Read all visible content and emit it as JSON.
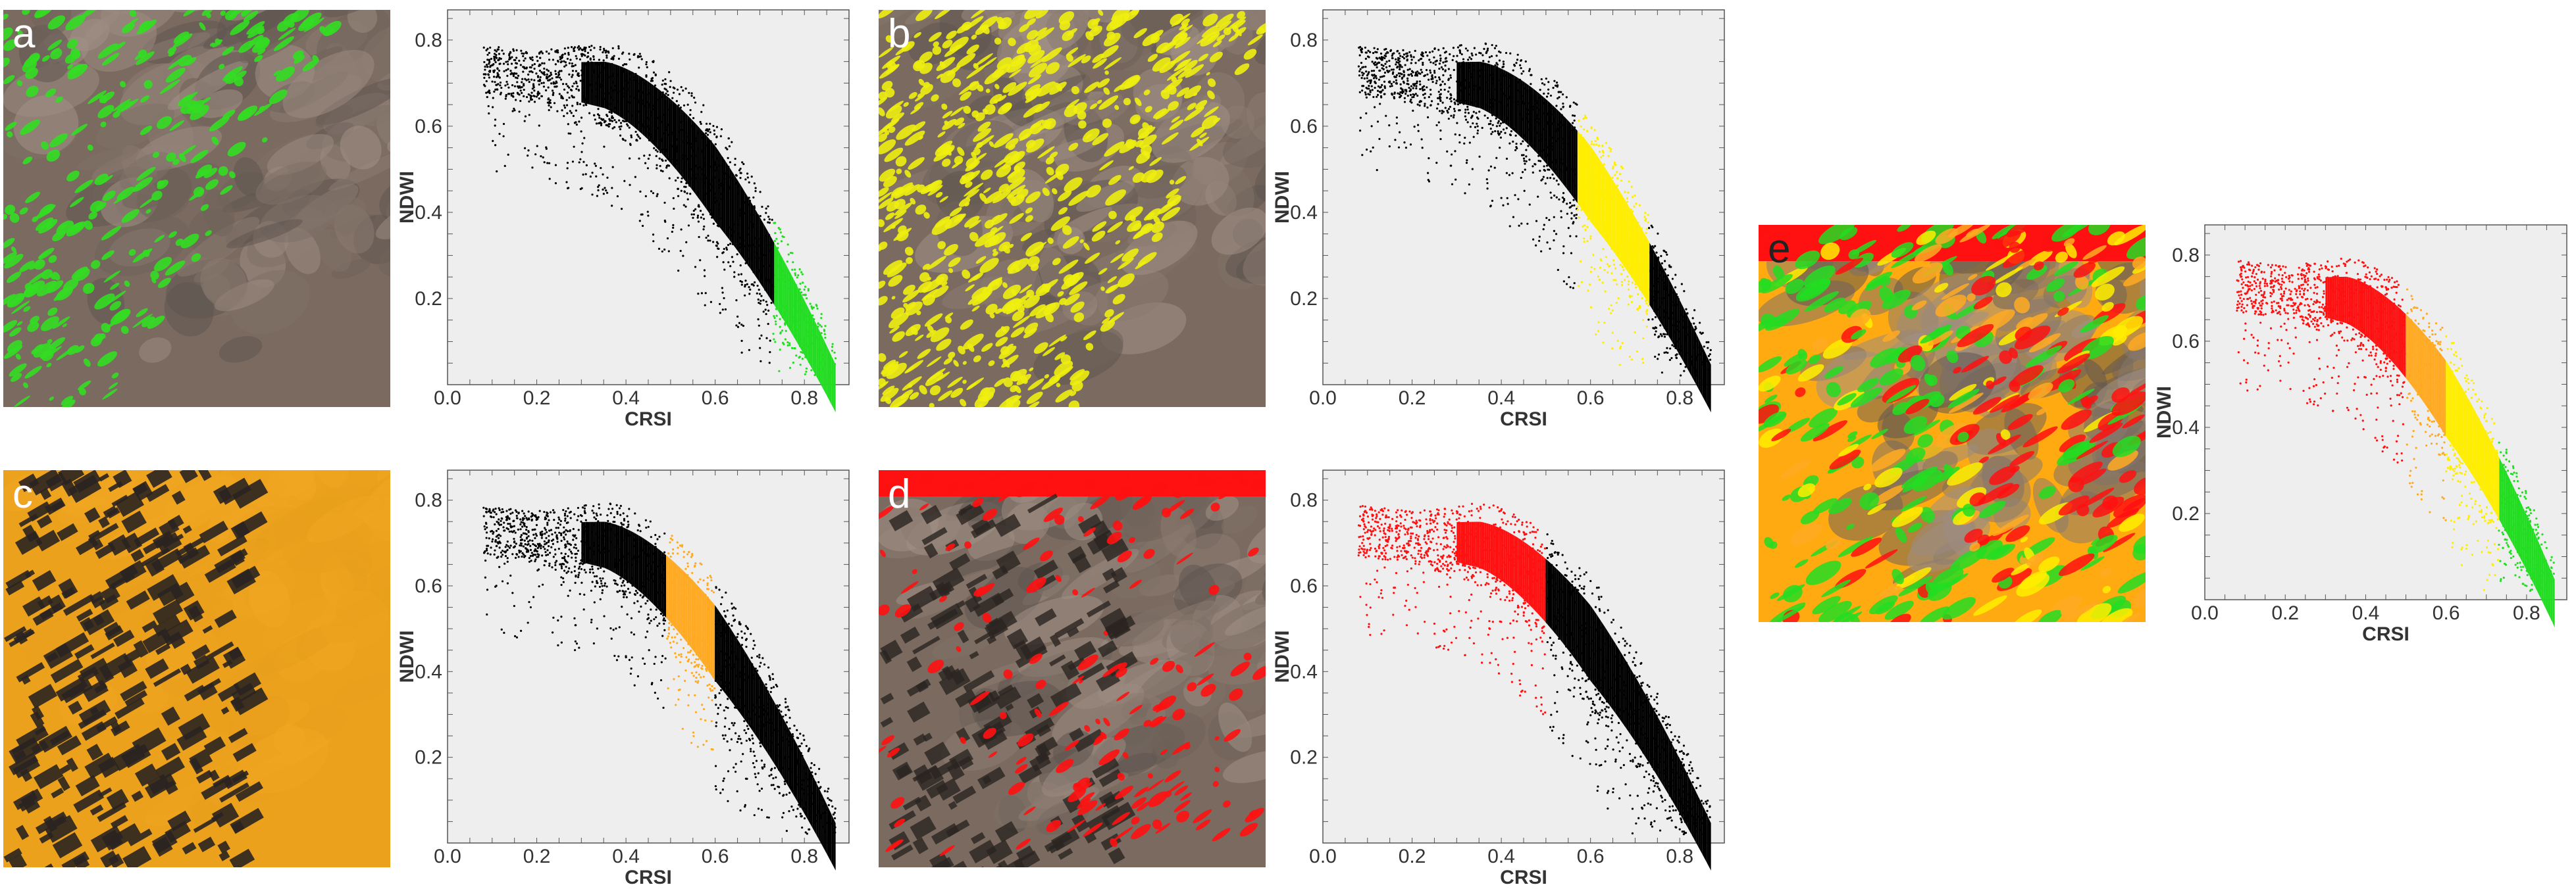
{
  "panels": [
    {
      "letter": "a",
      "overlay": "#33dd22"
    },
    {
      "letter": "b",
      "overlay": "#eeee11"
    },
    {
      "letter": "c",
      "overlay": "#ffaa11"
    },
    {
      "letter": "d",
      "overlay": "#ff1111"
    },
    {
      "letter": "e",
      "overlay": "classified"
    }
  ],
  "colors": {
    "background_plot": "#eeeeee",
    "unselected": "#000000",
    "class_green": "#22dd22",
    "class_yellow": "#ffee00",
    "class_orange": "#ffaa22",
    "class_red": "#ff1111"
  },
  "chart_data": [
    {
      "type": "scatter",
      "panel": "a",
      "xlabel": "CRSI",
      "ylabel": "NDWI",
      "xlim": [
        0.0,
        0.9
      ],
      "ylim": [
        0.0,
        0.87
      ],
      "x_ticks": [
        "0.0",
        "0.2",
        "0.4",
        "0.6",
        "0.8"
      ],
      "y_ticks": [
        "0.2",
        "0.4",
        "0.6",
        "0.8"
      ],
      "highlight_class": "green",
      "highlight_crsi_range": [
        0.73,
        0.87
      ]
    },
    {
      "type": "scatter",
      "panel": "b",
      "xlabel": "CRSI",
      "ylabel": "NDWI",
      "xlim": [
        0.0,
        0.9
      ],
      "ylim": [
        0.0,
        0.87
      ],
      "x_ticks": [
        "0.0",
        "0.2",
        "0.4",
        "0.6",
        "0.8"
      ],
      "y_ticks": [
        "0.2",
        "0.4",
        "0.6",
        "0.8"
      ],
      "highlight_class": "yellow",
      "highlight_crsi_range": [
        0.57,
        0.73
      ]
    },
    {
      "type": "scatter",
      "panel": "c",
      "xlabel": "CRSI",
      "ylabel": "NDWI",
      "xlim": [
        0.0,
        0.9
      ],
      "ylim": [
        0.0,
        0.87
      ],
      "x_ticks": [
        "0.0",
        "0.2",
        "0.4",
        "0.6",
        "0.8"
      ],
      "y_ticks": [
        "0.2",
        "0.4",
        "0.6",
        "0.8"
      ],
      "highlight_class": "orange",
      "highlight_crsi_range": [
        0.49,
        0.6
      ]
    },
    {
      "type": "scatter",
      "panel": "d",
      "xlabel": "CRSI",
      "ylabel": "NDWI",
      "xlim": [
        0.0,
        0.9
      ],
      "ylim": [
        0.0,
        0.87
      ],
      "x_ticks": [
        "0.0",
        "0.2",
        "0.4",
        "0.6",
        "0.8"
      ],
      "y_ticks": [
        "0.2",
        "0.4",
        "0.6",
        "0.8"
      ],
      "highlight_class": "red",
      "highlight_crsi_range": [
        0.0,
        0.5
      ]
    },
    {
      "type": "scatter",
      "panel": "e",
      "xlabel": "CRSI",
      "ylabel": "NDWI",
      "xlim": [
        0.0,
        0.9
      ],
      "ylim": [
        0.0,
        0.87
      ],
      "x_ticks": [
        "0.0",
        "0.2",
        "0.4",
        "0.6",
        "0.8"
      ],
      "y_ticks": [
        "0.2",
        "0.4",
        "0.6",
        "0.8"
      ],
      "highlight_class": "all",
      "classes": [
        {
          "color": "red",
          "crsi_range": [
            0.0,
            0.5
          ]
        },
        {
          "color": "orange",
          "crsi_range": [
            0.5,
            0.6
          ]
        },
        {
          "color": "yellow",
          "crsi_range": [
            0.6,
            0.73
          ]
        },
        {
          "color": "green",
          "crsi_range": [
            0.73,
            0.87
          ]
        }
      ]
    }
  ]
}
